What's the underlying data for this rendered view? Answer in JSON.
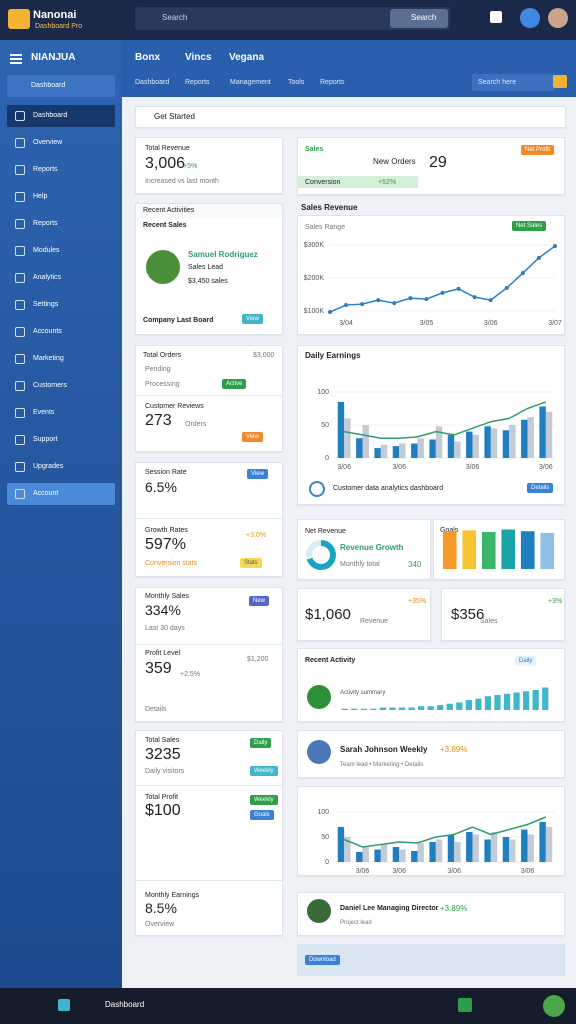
{
  "topbar": {
    "brand": "Nanonai",
    "brand_sub": "Dashboard Pro",
    "search_placeholder": "Search",
    "search_button": "Search"
  },
  "sidebar": {
    "title": "NIANJUA",
    "search": "Dashboard",
    "items": [
      "Dashboard",
      "Overview",
      "Reports",
      "Help",
      "Reports",
      "Modules",
      "Analytics",
      "Settings",
      "Accounts",
      "Marketing",
      "Customers",
      "Events",
      "Support",
      "Upgrades",
      "Account"
    ]
  },
  "header": {
    "tabs": [
      "Bonx",
      "Vincs",
      "Vegana"
    ],
    "subtabs": [
      "Dashboard",
      "Reports",
      "Management",
      "Tools",
      "Reports"
    ],
    "search": "Search here"
  },
  "search_bar": "Get Started",
  "cards": {
    "revenue": {
      "title": "Total Revenue",
      "value": "3,006",
      "delta": "+5%",
      "note": "Increased vs last month"
    },
    "activity": {
      "title": "Recent Activities",
      "subtitle": "Recent Sales",
      "name": "Samuel Rodriguez",
      "role": "Sales Lead",
      "amount": "$3,450 sales",
      "footer": "Company Last Board",
      "button": "View"
    },
    "orders": {
      "title": "Total Orders",
      "meta": "$3,000",
      "line1": "Pending",
      "line2": "Processing",
      "badge": "Active"
    },
    "reviews": {
      "title": "Customer Reviews",
      "value": "273",
      "unit": "Orders",
      "badge": "View"
    },
    "session": {
      "title": "Session Rate",
      "value": "6.5%",
      "badge": "View"
    },
    "growth": {
      "title": "Growth Rates",
      "value": "597%",
      "delta": "+3.0%",
      "note": "Conversion stats",
      "badge": "Stats"
    },
    "monthly": {
      "title": "Monthly Sales",
      "value": "334%",
      "badge": "New",
      "note": "Last 30 days"
    },
    "profit_level": {
      "title": "Profit Level",
      "value": "359",
      "delta": "+2.5%",
      "meta": "$1,200",
      "note": "Details"
    },
    "total_sales": {
      "title": "Total Sales",
      "value": "3235",
      "badge": "Daily",
      "note": "Daily visitors",
      "badge2": "Weekly"
    },
    "total_profit": {
      "title": "Total Profit",
      "value": "$100",
      "badge": "Weekly",
      "badge2": "Goals"
    },
    "earnings": {
      "title": "Monthly Earnings",
      "value": "8.5%",
      "note": "Overview"
    },
    "sales": {
      "title": "Sales",
      "badge": "Net Profit",
      "label": "New Orders",
      "value": "29",
      "bar_label": "Conversion",
      "bar_value": "+52%"
    },
    "net": {
      "title": "Net Revenue",
      "subtitle": "Revenue Growth",
      "value": "340",
      "note": "Monthly total"
    },
    "mini_title": "Goals",
    "rev_small": {
      "value": "$1,060",
      "note": "Revenue",
      "delta": "+35%"
    },
    "sales_small": {
      "value": "$356",
      "note": "Sales",
      "delta": "+3%"
    },
    "recent": {
      "title": "Recent Activity",
      "badge": "Daily",
      "note": "Activity summary"
    },
    "profile1": {
      "name": "Sarah Johnson Weekly",
      "delta": "+3.89%",
      "meta": "Team lead • Marketing • Details"
    },
    "profile2": {
      "name": "Daniel Lee Managing Director",
      "delta": "+3.89%",
      "meta": "Project lead"
    },
    "download": "Download"
  },
  "charts": {
    "line": {
      "type": "line",
      "title": "Sales Revenue",
      "label": "Sales Range",
      "badge": "Net Sales",
      "color": "#2a7fc4",
      "categories": [
        null,
        "3/04",
        null,
        null,
        null,
        null,
        "3/05",
        null,
        null,
        null,
        "3/06",
        null,
        null,
        null,
        "3/07"
      ],
      "values": [
        97,
        118,
        121,
        133,
        124,
        139,
        136,
        155,
        167,
        142,
        133,
        170,
        215,
        261,
        297
      ],
      "ylim": [
        100,
        300
      ],
      "yticks": [
        {
          "value": 300,
          "label": "$300K"
        },
        {
          "value": 200,
          "label": "$200K"
        },
        {
          "value": 100,
          "label": "$100K"
        }
      ]
    },
    "bars": {
      "type": "bar",
      "title": "Daily Earnings",
      "footer": "Customer data analytics dashboard",
      "button": "Details",
      "categories": [
        "3/06",
        null,
        null,
        "3/06",
        null,
        null,
        null,
        "3/06",
        null,
        null,
        null,
        "3/06"
      ],
      "ylim": [
        0,
        100
      ],
      "yticks": [
        0,
        50,
        100
      ],
      "series": [
        {
          "type": "bar",
          "color": "#1f7fc0",
          "values": [
            85,
            30,
            15,
            18,
            22,
            28,
            35,
            40,
            48,
            42,
            58,
            78
          ]
        },
        {
          "type": "bar",
          "color": "#c3cbd6",
          "values": [
            60,
            50,
            20,
            22,
            30,
            48,
            25,
            35,
            45,
            50,
            62,
            70
          ]
        },
        {
          "type": "line",
          "color": "#2e9e6a",
          "values": [
            40,
            35,
            30,
            30,
            32,
            40,
            35,
            45,
            55,
            60,
            75,
            85
          ]
        }
      ]
    },
    "bars2": {
      "type": "bar",
      "categories": [
        null,
        "3/06",
        null,
        "3/06",
        null,
        null,
        "3/06",
        null,
        null,
        null,
        "3/06",
        null
      ],
      "ylim": [
        0,
        100
      ],
      "yticks": [
        0,
        50,
        100
      ],
      "series": [
        {
          "type": "bar",
          "color": "#1f7fc0",
          "values": [
            70,
            20,
            25,
            30,
            22,
            40,
            55,
            60,
            45,
            50,
            65,
            80
          ]
        },
        {
          "type": "bar",
          "color": "#c3cbd6",
          "values": [
            50,
            30,
            35,
            25,
            38,
            45,
            40,
            55,
            60,
            45,
            55,
            70
          ]
        },
        {
          "type": "line",
          "color": "#2e9e6a",
          "values": [
            45,
            30,
            35,
            40,
            38,
            50,
            55,
            70,
            55,
            65,
            75,
            90
          ]
        }
      ]
    },
    "mini": {
      "type": "bar",
      "ylim": [
        0,
        100
      ],
      "values": [
        90,
        92,
        88,
        94,
        90,
        86
      ],
      "colors": [
        "#f39a2b",
        "#f5c533",
        "#3cb56a",
        "#1ba3a3",
        "#1f7fc0",
        "#8fc1e8"
      ]
    },
    "activity": {
      "type": "bar",
      "ylim": [
        0,
        20
      ],
      "color": "#3fb6c9",
      "values": [
        1,
        1,
        1,
        1,
        2,
        2,
        2,
        2,
        3,
        3,
        4,
        5,
        6,
        8,
        9,
        11,
        12,
        13,
        14,
        15,
        16,
        18
      ]
    },
    "donut": {
      "type": "pie",
      "values": [
        70,
        30
      ],
      "colors": [
        "#1ba3c6",
        "#d5eef5"
      ]
    }
  },
  "bottombar": {
    "label": "Dashboard"
  }
}
